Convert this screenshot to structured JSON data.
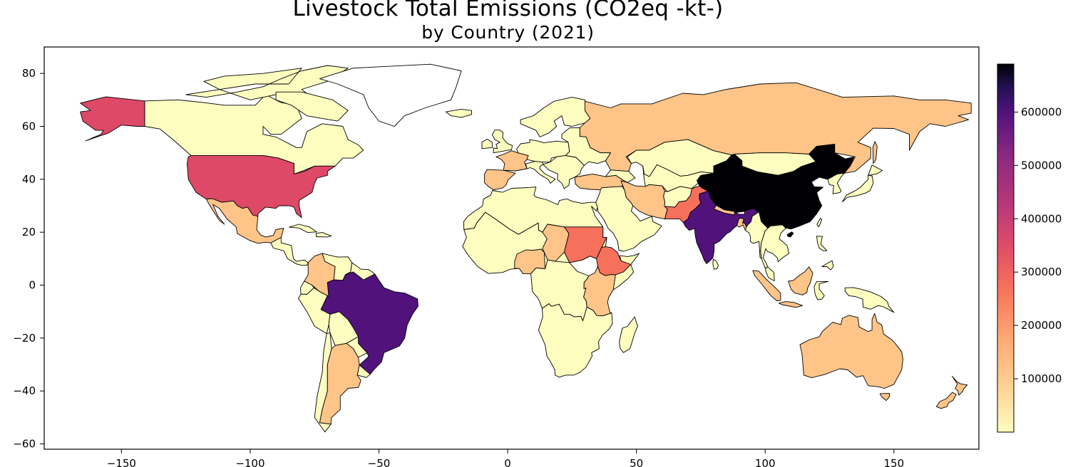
{
  "chart_data": {
    "type": "choropleth",
    "title": "Livestock Total Emissions (CO2eq -kt-)",
    "subtitle": "by Country (2021)",
    "colormap": "magma_r",
    "colors": {
      "low": "#fcfdbf",
      "mid_low": "#fec488",
      "mid": "#f7705c",
      "mid_high": "#de4968",
      "high": "#8c2981",
      "higher": "#51127c",
      "max": "#000004"
    },
    "xlim": [
      -180,
      183
    ],
    "ylim": [
      -62,
      90
    ],
    "x_ticks": [
      "-150",
      "-100",
      "-50",
      "0",
      "50",
      "100",
      "150"
    ],
    "x_tick_values": [
      -150,
      -100,
      -50,
      0,
      50,
      100,
      150
    ],
    "y_ticks": [
      "-60",
      "-40",
      "-20",
      "0",
      "20",
      "40",
      "60",
      "80"
    ],
    "y_tick_values": [
      -60,
      -40,
      -20,
      0,
      20,
      40,
      60,
      80
    ],
    "colorbar": {
      "min": 0,
      "max": 690000,
      "tick_labels": [
        "100000",
        "200000",
        "300000",
        "400000",
        "500000",
        "600000"
      ],
      "tick_values": [
        100000,
        200000,
        300000,
        400000,
        500000,
        600000
      ]
    }
  }
}
